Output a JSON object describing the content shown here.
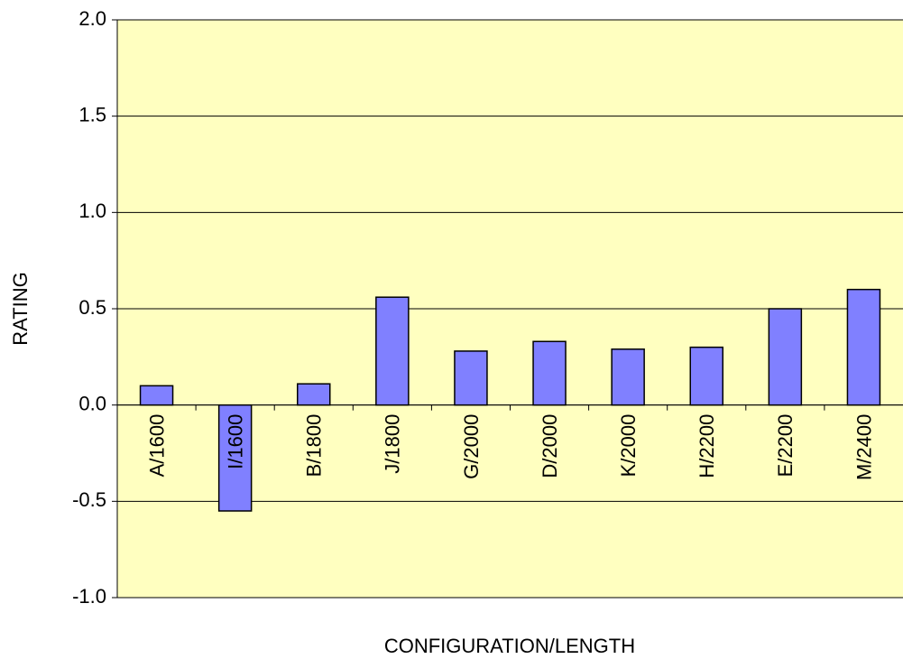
{
  "chart_data": {
    "type": "bar",
    "categories": [
      "A/1600",
      "I/1600",
      "B/1800",
      "J/1800",
      "G/2000",
      "D/2000",
      "K/2000",
      "H/2200",
      "E/2200",
      "M/2400"
    ],
    "values": [
      0.1,
      -0.55,
      0.11,
      0.56,
      0.28,
      0.33,
      0.29,
      0.3,
      0.5,
      0.6
    ],
    "color": "#8080ff",
    "ylim": [
      -1,
      2
    ],
    "yticks": [
      {
        "value": -1,
        "label": "-1.0"
      },
      {
        "value": -0.5,
        "label": "-0.5"
      },
      {
        "value": 0,
        "label": "0.0"
      },
      {
        "value": 0.5,
        "label": "0.5"
      },
      {
        "value": 1,
        "label": "1.0"
      },
      {
        "value": 1.5,
        "label": "1.5"
      },
      {
        "value": 2,
        "label": "2.0"
      }
    ],
    "xlabel": "CONFIGURATION/LENGTH",
    "ylabel": "RATING",
    "grid": true
  }
}
